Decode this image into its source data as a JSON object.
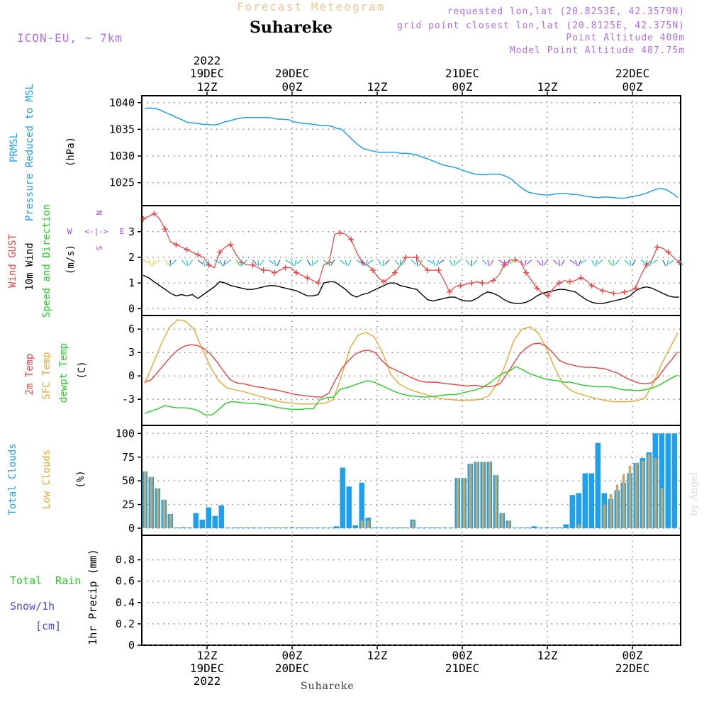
{
  "header": {
    "chart_type_label": "Forecast Meteogram",
    "station": "Suhareke",
    "model": "ICON-EU, ~ 7km",
    "requested": "requested lon,lat (20.8253E, 42.3579N)",
    "grid_point": "grid point closest lon,lat (20.8125E, 42.375N)",
    "point_altitude": "Point Altitude 400m",
    "model_altitude": "Model Point Altitude 487.75m"
  },
  "footer": {
    "station": "Suhareke",
    "signature": "by Angel"
  },
  "time_axis": {
    "labels": [
      {
        "i": 9,
        "l1": "12Z",
        "l2": "19DEC",
        "l3": "2022"
      },
      {
        "i": 21,
        "l1": "00Z",
        "l2": "20DEC",
        "l3": ""
      },
      {
        "i": 33,
        "l1": "12Z",
        "l2": "",
        "l3": ""
      },
      {
        "i": 45,
        "l1": "00Z",
        "l2": "21DEC",
        "l3": ""
      },
      {
        "i": 57,
        "l1": "12Z",
        "l2": "",
        "l3": ""
      },
      {
        "i": 69,
        "l1": "00Z",
        "l2": "22DEC",
        "l3": ""
      }
    ]
  },
  "panel_labels": {
    "p1": [
      "PRMSL",
      "Pressure Reduced to MSL",
      "(hPa)"
    ],
    "p2": [
      "Wind GUST",
      "10m Wind",
      "Speed and Direction",
      "(m/s)"
    ],
    "compass": {
      "n": "N",
      "s": "S",
      "w": "W",
      "e": "E"
    },
    "p3": [
      "2m Temp",
      "SFC Temp",
      "dewpt Temp",
      "(C)"
    ],
    "p4": [
      "Total Clouds",
      "Low Clouds",
      "(%)"
    ],
    "p5": [
      "Total",
      "Rain",
      "Snow/1h",
      "[cm]",
      "1hr Precip (mm)"
    ]
  },
  "colors": {
    "pressure": "#1ea0f0",
    "gust": "#f04040",
    "wind": "#000000",
    "temp2m": "#f04040",
    "sfc": "#e8a830",
    "dewpt": "#20d020",
    "total_clouds": "#1ea0f0",
    "low_clouds": "#c8a868",
    "rain": "#20d020",
    "snow": "#4848f0",
    "arrow_cyan": "#10c8c8",
    "arrow_green": "#40d020",
    "arrow_blue": "#3050f0",
    "arrow_purple": "#a040f0",
    "grid": "#888888",
    "frame": "#000000"
  },
  "chart_data": [
    {
      "type": "line",
      "name": "prmsl",
      "x": "hours since 2022-12-19 03Z (hourly, 0..63)",
      "ylim": [
        1021.5,
        1040.5
      ],
      "yticks": [
        1025,
        1030,
        1035,
        1040
      ],
      "values": [
        1038.9,
        1039.0,
        1038.9,
        1038.6,
        1038.1,
        1037.7,
        1037.2,
        1036.8,
        1036.3,
        1036.2,
        1036.1,
        1035.9,
        1035.9,
        1035.8,
        1036.0,
        1036.4,
        1036.6,
        1036.9,
        1037.1,
        1037.2,
        1037.2,
        1037.2,
        1037.2,
        1037.2,
        1037.1,
        1036.9,
        1036.9,
        1036.8,
        1036.4,
        1036.2,
        1036.1,
        1036.0,
        1035.9,
        1035.7,
        1035.7,
        1035.6,
        1035.2,
        1035.0,
        1034.0,
        1033.0,
        1032.1,
        1031.4,
        1031.1,
        1030.9,
        1030.7,
        1030.7,
        1030.7,
        1030.7,
        1030.5,
        1030.5,
        1030.4,
        1030.2,
        1029.8,
        1029.5,
        1029.1,
        1028.7,
        1028.3,
        1028.1,
        1027.9,
        1027.6,
        1027.2,
        1026.9,
        1026.6,
        1026.5
      ]
    },
    {
      "type": "line",
      "name": "prmsl_tail",
      "values": [
        1026.5,
        1026.5,
        1026.6,
        1026.6,
        1026.5,
        1026.1,
        1025.5,
        1024.6,
        1023.8,
        1023.2,
        1023.0,
        1022.8,
        1022.7,
        1022.7,
        1022.9,
        1023.0,
        1023.0,
        1022.8,
        1022.8,
        1022.6,
        1022.4,
        1022.3,
        1022.2,
        1022.3,
        1022.3,
        1022.2,
        1022.1,
        1022.1,
        1022.3,
        1022.5,
        1022.7,
        1023.0,
        1023.4,
        1023.8,
        1023.9,
        1023.6,
        1023.0,
        1022.2
      ]
    },
    {
      "type": "line",
      "name": "wind_10m_and_gust",
      "ylim": [
        -0.1,
        3.85
      ],
      "yticks": [
        0,
        1,
        2,
        3
      ],
      "gust": [
        3.5,
        3.6,
        3.7,
        3.5,
        3.1,
        2.6,
        2.5,
        2.4,
        2.3,
        2.2,
        2.1,
        2.0,
        1.7,
        1.6,
        2.2,
        2.4,
        2.5,
        2.1,
        1.8,
        1.7,
        1.7,
        1.6,
        1.5,
        1.5,
        1.4,
        1.5,
        1.6,
        1.6,
        1.4,
        1.3,
        1.2,
        1.1,
        1.0,
        1.7,
        1.8,
        2.9,
        2.95,
        2.9,
        2.7,
        2.2,
        1.8,
        1.7,
        1.5,
        1.2,
        1.05,
        1.2,
        1.4,
        1.7,
        2.0,
        2.0,
        2.0,
        1.7,
        1.5,
        1.5,
        1.5,
        1.1,
        0.65,
        0.85,
        0.9,
        0.95,
        1.0,
        1.05,
        1.0,
        1.0,
        1.1,
        1.3,
        1.7,
        1.9,
        1.9,
        1.8,
        1.4,
        1.1,
        0.8,
        0.6,
        0.5,
        0.8,
        1.0,
        1.1,
        1.05,
        1.1,
        1.2,
        1.1,
        0.9,
        0.8,
        0.7,
        0.65,
        0.6,
        0.6,
        0.65,
        0.7,
        0.8,
        1.3,
        1.7,
        1.9,
        2.4,
        2.35,
        2.2,
        2.0,
        1.8
      ],
      "wind": [
        1.3,
        1.2,
        1.05,
        0.9,
        0.75,
        0.6,
        0.5,
        0.55,
        0.5,
        0.55,
        0.4,
        0.55,
        0.7,
        0.85,
        1.05,
        1.0,
        0.9,
        0.85,
        0.8,
        0.75,
        0.75,
        0.8,
        0.85,
        0.9,
        0.9,
        0.85,
        0.8,
        0.75,
        0.7,
        0.6,
        0.5,
        0.5,
        0.55,
        1.0,
        1.05,
        1.05,
        0.9,
        0.75,
        0.55,
        0.45,
        0.55,
        0.6,
        0.7,
        0.8,
        0.9,
        1.0,
        1.0,
        0.9,
        0.85,
        0.8,
        0.75,
        0.55,
        0.35,
        0.3,
        0.35,
        0.4,
        0.45,
        0.45,
        0.35,
        0.3,
        0.3,
        0.4,
        0.55,
        0.65,
        0.6,
        0.5,
        0.35,
        0.25,
        0.2,
        0.2,
        0.25,
        0.35,
        0.5,
        0.6,
        0.65,
        0.7,
        0.75,
        0.75,
        0.7,
        0.65,
        0.5,
        0.35,
        0.25,
        0.2,
        0.2,
        0.25,
        0.3,
        0.35,
        0.4,
        0.5,
        0.7,
        0.8,
        0.85,
        0.8,
        0.7,
        0.6,
        0.5,
        0.45,
        0.45
      ]
    },
    {
      "type": "line",
      "name": "temperature",
      "ylim": [
        -5.8,
        7.2
      ],
      "yticks": [
        -3,
        0,
        3,
        6
      ],
      "temp2m": [
        -0.8,
        -0.5,
        0.5,
        1.5,
        2.5,
        3.3,
        3.8,
        4.0,
        3.9,
        3.5,
        2.8,
        1.8,
        0.6,
        -0.5,
        -0.9,
        -1.0,
        -1.2,
        -1.4,
        -1.5,
        -1.7,
        -1.8,
        -2.0,
        -2.2,
        -2.4,
        -2.5,
        -2.6,
        -2.7,
        -2.7,
        -2.2,
        -0.5,
        1.0,
        2.0,
        2.8,
        3.2,
        3.3,
        3.0,
        2.0,
        1.2,
        0.8,
        0.4,
        0.0,
        -0.4,
        -0.7,
        -0.8,
        -0.8,
        -0.9,
        -1.0,
        -1.1,
        -1.2,
        -1.3,
        -1.2,
        -1.3,
        -1.4,
        -1.3,
        -1.0,
        0.2,
        1.5,
        2.8,
        3.6,
        4.1,
        4.2,
        3.8,
        3.0,
        2.0,
        1.6,
        1.4,
        1.2,
        1.1,
        1.1,
        1.0,
        0.9,
        0.6,
        0.3,
        -0.2,
        -0.6,
        -0.9,
        -1.0,
        -0.9,
        -0.2,
        1.0,
        2.0,
        3.1
      ],
      "sfc": [
        -1.0,
        1.5,
        4.0,
        6.2,
        7.2,
        7.0,
        6.0,
        3.5,
        1.2,
        -0.6,
        -1.5,
        -1.8,
        -2.0,
        -2.3,
        -2.6,
        -2.9,
        -3.2,
        -3.4,
        -3.5,
        -3.6,
        -3.6,
        -3.6,
        -3.5,
        -3.0,
        0.0,
        3.5,
        5.2,
        5.6,
        5.0,
        3.0,
        0.2,
        -1.0,
        -1.6,
        -2.0,
        -2.3,
        -2.6,
        -2.9,
        -3.0,
        -3.1,
        -3.1,
        -3.1,
        -3.0,
        -2.5,
        -1.0,
        1.5,
        4.5,
        6.0,
        6.3,
        5.5,
        3.5,
        1.0,
        -1.0,
        -1.9,
        -2.3,
        -2.6,
        -2.9,
        -3.1,
        -3.3,
        -3.3,
        -3.3,
        -3.2,
        -2.8,
        -1.0,
        1.5,
        3.5,
        5.5
      ],
      "dewpt": [
        -4.8,
        -4.5,
        -4.2,
        -3.8,
        -4.0,
        -4.1,
        -4.1,
        -4.2,
        -4.5,
        -5.0,
        -5.0,
        -4.3,
        -3.5,
        -3.3,
        -3.4,
        -3.5,
        -3.5,
        -3.6,
        -3.7,
        -3.9,
        -4.1,
        -4.2,
        -4.3,
        -4.3,
        -4.2,
        -4.2,
        -3.0,
        -2.8,
        -2.7,
        -1.7,
        -1.5,
        -1.2,
        -0.9,
        -0.6,
        -0.8,
        -1.2,
        -1.6,
        -2.0,
        -2.3,
        -2.5,
        -2.6,
        -2.7,
        -2.7,
        -2.6,
        -2.5,
        -2.4,
        -2.4,
        -2.2,
        -2.0,
        -1.8,
        -1.5,
        -1.0,
        -0.3,
        0.3,
        0.6,
        1.2,
        0.8,
        0.3,
        0.0,
        -0.3,
        -0.5,
        -0.6,
        -0.8,
        -0.8,
        -1.0,
        -1.2,
        -1.3,
        -1.4,
        -1.4,
        -1.4,
        -1.6,
        -1.8,
        -1.8,
        -1.9,
        -1.8,
        -1.6,
        -1.3,
        -0.8,
        -0.3,
        0.1
      ]
    },
    {
      "type": "bar",
      "name": "clouds",
      "ylim": [
        -3,
        104
      ],
      "yticks": [
        0,
        25,
        50,
        75,
        100
      ],
      "total": [
        60,
        54,
        42,
        30,
        15,
        0,
        1,
        0,
        16,
        9,
        22,
        13,
        24,
        0,
        0,
        0,
        0,
        0,
        0,
        0,
        0,
        0,
        0,
        0,
        0,
        0,
        0,
        0,
        0,
        0,
        2,
        64,
        44,
        3,
        48,
        11,
        0,
        0,
        0,
        0,
        0,
        0,
        9,
        0,
        0,
        0,
        0,
        0,
        0,
        53,
        53,
        68,
        70,
        70,
        70,
        56,
        16,
        8,
        0,
        0,
        0,
        2,
        0,
        0,
        0,
        0,
        4,
        35,
        37,
        58,
        58,
        90,
        37,
        31,
        40,
        48,
        58,
        69,
        74,
        80,
        100,
        100,
        100,
        100
      ],
      "low": [
        60,
        54,
        42,
        30,
        15,
        0,
        0,
        0,
        0,
        0,
        0,
        0,
        0,
        0,
        0,
        0,
        0,
        0,
        0,
        0,
        0,
        0,
        0,
        0,
        0,
        0,
        0,
        0,
        0,
        0,
        0,
        0,
        0,
        0,
        8,
        8,
        0,
        0,
        0,
        0,
        0,
        0,
        8,
        0,
        0,
        0,
        0,
        0,
        0,
        53,
        53,
        68,
        70,
        70,
        70,
        56,
        16,
        8,
        0,
        0,
        0,
        0,
        0,
        0,
        0,
        0,
        0,
        0,
        4,
        0,
        0,
        0,
        25,
        36,
        46,
        57,
        66,
        69,
        71,
        78,
        74,
        42,
        0
      ]
    },
    {
      "type": "bar",
      "name": "precip",
      "ylim": [
        0,
        0.99
      ],
      "yticks": [
        0,
        0.2,
        0.4,
        0.6,
        0.8
      ],
      "rain": [],
      "snow": []
    }
  ]
}
